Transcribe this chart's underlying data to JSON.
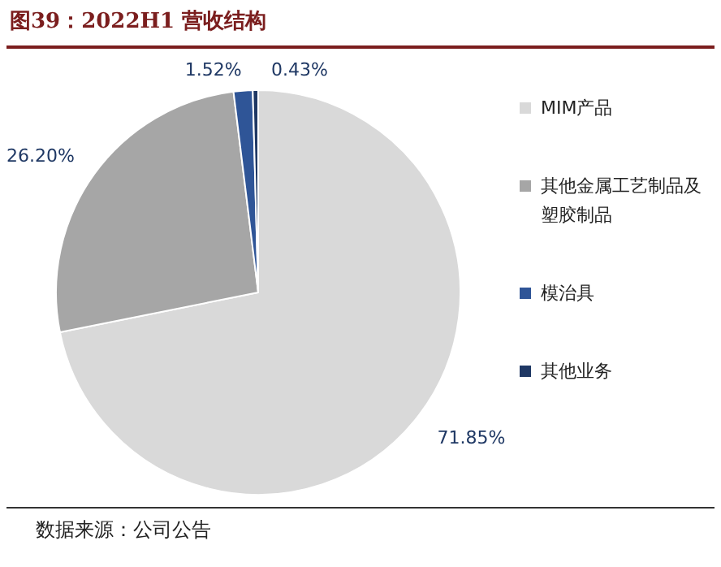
{
  "chart_data": {
    "type": "pie",
    "title": "图39：2022H1 营收结构",
    "categories": [
      "MIM产品",
      "其他金属工艺制品及塑胶制品",
      "模治具",
      "其他业务"
    ],
    "values": [
      71.85,
      26.2,
      1.52,
      0.43
    ],
    "value_labels": [
      "71.85%",
      "26.20%",
      "1.52%",
      "0.43%"
    ],
    "colors": [
      "#d9d9d9",
      "#a6a6a6",
      "#2f5597",
      "#1f3864"
    ],
    "legend": "right",
    "annotations": [
      "数据来源：公司公告"
    ]
  }
}
